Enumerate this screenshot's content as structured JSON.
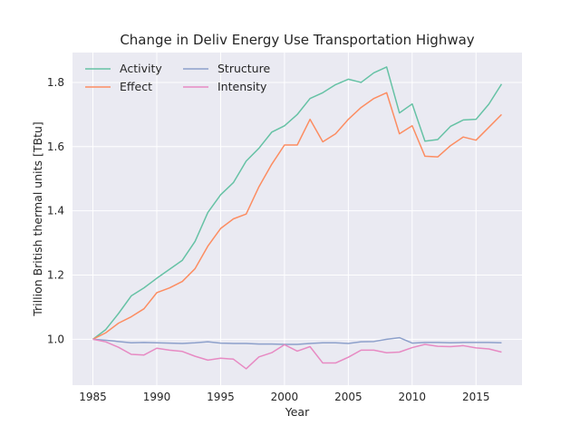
{
  "chart_data": {
    "type": "line",
    "title": "Change in Deliv Energy Use Transportation Highway",
    "xlabel": "Year",
    "ylabel": "Trillion British thermal units [TBtu]",
    "xlim": [
      1983.4,
      2018.6
    ],
    "ylim": [
      0.857,
      1.893
    ],
    "xticks": [
      1985,
      1990,
      1995,
      2000,
      2005,
      2010,
      2015
    ],
    "yticks": [
      1.0,
      1.2,
      1.4,
      1.6,
      1.8
    ],
    "ytick_labels": [
      "1.0",
      "1.2",
      "1.4",
      "1.6",
      "1.8"
    ],
    "grid": true,
    "legend_position": "top-left",
    "x": [
      1985,
      1986,
      1987,
      1988,
      1989,
      1990,
      1991,
      1992,
      1993,
      1994,
      1995,
      1996,
      1997,
      1998,
      1999,
      2000,
      2001,
      2002,
      2003,
      2004,
      2005,
      2006,
      2007,
      2008,
      2009,
      2010,
      2011,
      2012,
      2013,
      2014,
      2015,
      2016,
      2017
    ],
    "series": [
      {
        "name": "Activity",
        "color": "#66c2a5",
        "values": [
          1.0,
          1.03,
          1.08,
          1.135,
          1.16,
          1.19,
          1.218,
          1.246,
          1.305,
          1.395,
          1.45,
          1.488,
          1.555,
          1.595,
          1.645,
          1.665,
          1.7,
          1.75,
          1.768,
          1.793,
          1.81,
          1.8,
          1.83,
          1.848,
          1.705,
          1.733,
          1.617,
          1.622,
          1.663,
          1.683,
          1.685,
          1.732,
          1.795
        ]
      },
      {
        "name": "Effect",
        "color": "#fc8d62",
        "values": [
          1.0,
          1.02,
          1.05,
          1.07,
          1.095,
          1.145,
          1.16,
          1.18,
          1.22,
          1.29,
          1.345,
          1.375,
          1.39,
          1.475,
          1.545,
          1.605,
          1.605,
          1.685,
          1.615,
          1.64,
          1.685,
          1.722,
          1.75,
          1.768,
          1.64,
          1.665,
          1.57,
          1.568,
          1.603,
          1.63,
          1.62,
          1.66,
          1.7
        ]
      },
      {
        "name": "Structure",
        "color": "#8da0cb",
        "values": [
          1.0,
          0.997,
          0.993,
          0.989,
          0.99,
          0.989,
          0.988,
          0.987,
          0.989,
          0.992,
          0.988,
          0.987,
          0.987,
          0.985,
          0.985,
          0.984,
          0.984,
          0.987,
          0.989,
          0.989,
          0.987,
          0.992,
          0.993,
          1.0,
          1.005,
          0.988,
          0.99,
          0.99,
          0.989,
          0.99,
          0.99,
          0.99,
          0.989
        ]
      },
      {
        "name": "Intensity",
        "color": "#e78ac3",
        "values": [
          1.0,
          0.992,
          0.975,
          0.953,
          0.951,
          0.972,
          0.966,
          0.962,
          0.947,
          0.935,
          0.941,
          0.938,
          0.908,
          0.945,
          0.958,
          0.983,
          0.963,
          0.977,
          0.926,
          0.926,
          0.944,
          0.966,
          0.966,
          0.958,
          0.96,
          0.974,
          0.984,
          0.978,
          0.977,
          0.98,
          0.973,
          0.97,
          0.96
        ]
      }
    ]
  }
}
